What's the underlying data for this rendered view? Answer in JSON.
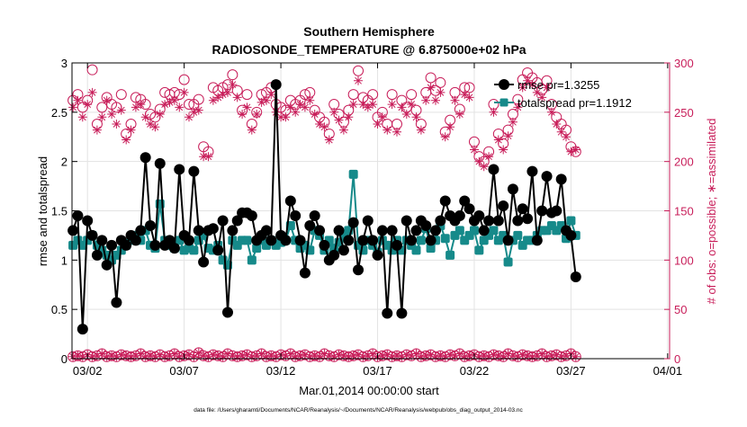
{
  "colors": {
    "rmse": "#000000",
    "spread": "#168a8a",
    "obs": "#c81e5a",
    "axis": "#000000",
    "grid": "#e3e3e3"
  },
  "chart_data": {
    "type": "line",
    "title": "Southern Hemisphere",
    "subtitle": "RADIOSONDE_TEMPERATURE @ 6.875000e+02 hPa",
    "xlabel": "Mar.01,2014 00:00:00 start",
    "ylabel_left": "rmse and totalspread",
    "ylabel_right": "# of obs: o=possible; ∗=assimilated",
    "footer": "data file: /Users/gharamti/Documents/NCAR/Reanalysis/~/Documents/NCAR/Reanalysis/webpub/obs_diag_output_2014-03.nc",
    "xlim": [
      1.2,
      32.1
    ],
    "ylim_left": [
      0,
      3
    ],
    "ylim_right": [
      0,
      300
    ],
    "x_ticks": [
      {
        "value": 2,
        "label": "03/02"
      },
      {
        "value": 7,
        "label": "03/07"
      },
      {
        "value": 12,
        "label": "03/12"
      },
      {
        "value": 17,
        "label": "03/17"
      },
      {
        "value": 22,
        "label": "03/22"
      },
      {
        "value": 27,
        "label": "03/27"
      },
      {
        "value": 32,
        "label": "04/01"
      }
    ],
    "y_ticks_left": [
      {
        "value": 0,
        "label": "0"
      },
      {
        "value": 0.5,
        "label": "0.5"
      },
      {
        "value": 1,
        "label": "1"
      },
      {
        "value": 1.5,
        "label": "1.5"
      },
      {
        "value": 2,
        "label": "2"
      },
      {
        "value": 2.5,
        "label": "2.5"
      },
      {
        "value": 3,
        "label": "3"
      }
    ],
    "y_ticks_right": [
      {
        "value": 0,
        "label": "0"
      },
      {
        "value": 50,
        "label": "50"
      },
      {
        "value": 100,
        "label": "100"
      },
      {
        "value": 150,
        "label": "150"
      },
      {
        "value": 200,
        "label": "200"
      },
      {
        "value": 250,
        "label": "250"
      },
      {
        "value": 300,
        "label": "300"
      }
    ],
    "legend": {
      "location": "top-right",
      "entries": [
        {
          "series": "rmse",
          "label": "rmse pr=1.3255"
        },
        {
          "series": "spread",
          "label": "totalspread pr=1.1912"
        }
      ]
    },
    "x_start": 1.25,
    "x_step": 0.25,
    "series": [
      {
        "name": "rmse",
        "axis": "left",
        "values": [
          1.3,
          1.45,
          0.3,
          1.4,
          1.25,
          1.05,
          1.2,
          0.95,
          1.15,
          0.57,
          1.2,
          1.15,
          1.25,
          1.2,
          1.3,
          2.04,
          1.35,
          1.15,
          1.98,
          1.15,
          1.2,
          1.12,
          1.92,
          1.25,
          1.2,
          1.9,
          1.3,
          0.98,
          1.3,
          1.32,
          1.1,
          1.4,
          0.47,
          1.3,
          1.4,
          1.48,
          1.48,
          1.45,
          1.2,
          1.25,
          1.3,
          1.2,
          2.78,
          1.25,
          1.2,
          1.6,
          1.45,
          1.2,
          0.87,
          1.35,
          1.45,
          1.3,
          1.15,
          1.0,
          1.05,
          1.3,
          1.1,
          1.2,
          1.38,
          0.9,
          1.2,
          1.4,
          1.2,
          1.05,
          1.3,
          0.46,
          1.3,
          1.15,
          0.46,
          1.4,
          1.2,
          1.3,
          1.4,
          1.35,
          1.2,
          1.3,
          1.4,
          1.6,
          1.45,
          1.4,
          1.45,
          1.6,
          1.52,
          1.4,
          1.45,
          1.3,
          1.4,
          1.92,
          1.4,
          1.55,
          1.2,
          1.72,
          1.4,
          1.52,
          1.42,
          1.9,
          1.2,
          1.5,
          1.85,
          1.48,
          1.5,
          1.82,
          1.3,
          1.25,
          0.83
        ]
      },
      {
        "name": "totalspread",
        "axis": "left",
        "values": [
          1.15,
          1.2,
          1.15,
          1.2,
          1.25,
          1.15,
          1.1,
          1.05,
          1.0,
          1.05,
          1.1,
          1.15,
          1.2,
          1.25,
          1.2,
          1.3,
          1.15,
          1.12,
          1.57,
          1.2,
          1.15,
          1.12,
          1.2,
          1.1,
          1.12,
          1.1,
          1.2,
          1.25,
          1.12,
          1.1,
          1.15,
          1.0,
          0.95,
          1.2,
          1.15,
          1.2,
          1.2,
          1.0,
          1.12,
          1.2,
          1.15,
          1.2,
          1.15,
          1.18,
          1.2,
          1.35,
          1.2,
          1.12,
          1.15,
          1.1,
          1.3,
          1.25,
          1.1,
          1.2,
          1.12,
          1.18,
          1.25,
          1.3,
          1.87,
          1.15,
          1.1,
          1.2,
          1.15,
          1.08,
          1.2,
          1.15,
          1.1,
          1.2,
          1.1,
          1.2,
          1.15,
          1.1,
          1.2,
          1.32,
          1.12,
          1.2,
          1.35,
          1.22,
          1.05,
          1.25,
          1.3,
          1.2,
          1.25,
          1.3,
          1.1,
          1.2,
          1.25,
          1.3,
          1.2,
          1.25,
          0.98,
          1.2,
          1.25,
          1.15,
          1.2,
          1.2,
          1.25,
          1.3,
          1.3,
          1.35,
          1.3,
          1.35,
          1.22,
          1.4,
          1.25
        ]
      },
      {
        "name": "obs possible",
        "axis": "right",
        "marker": "circle",
        "values": [
          262,
          268,
          255,
          262,
          293,
          238,
          255,
          265,
          258,
          255,
          268,
          228,
          238,
          265,
          263,
          258,
          248,
          245,
          253,
          270,
          268,
          270,
          268,
          283,
          258,
          258,
          263,
          215,
          210,
          275,
          272,
          275,
          278,
          288,
          272,
          252,
          268,
          238,
          250,
          268,
          270,
          275,
          258,
          255,
          252,
          262,
          258,
          262,
          268,
          270,
          252,
          245,
          240,
          228,
          258,
          248,
          240,
          252,
          268,
          292,
          265,
          262,
          268,
          245,
          250,
          238,
          268,
          238,
          262,
          255,
          268,
          252,
          238,
          270,
          285,
          272,
          280,
          230,
          242,
          270,
          253,
          275,
          275,
          220,
          205,
          200,
          210,
          258,
          228,
          218,
          232,
          248,
          263,
          283,
          290,
          285,
          280,
          273,
          282,
          258,
          245,
          238,
          232,
          215,
          210
        ]
      },
      {
        "name": "obs assimilated",
        "axis": "right",
        "marker": "star",
        "values": [
          255,
          262,
          245,
          258,
          270,
          232,
          245,
          262,
          248,
          238,
          252,
          222,
          232,
          255,
          258,
          245,
          238,
          235,
          248,
          258,
          260,
          262,
          255,
          270,
          245,
          250,
          252,
          205,
          205,
          262,
          265,
          268,
          270,
          278,
          265,
          248,
          255,
          232,
          248,
          260,
          262,
          268,
          250,
          245,
          245,
          255,
          250,
          258,
          255,
          262,
          248,
          238,
          235,
          222,
          250,
          242,
          232,
          245,
          258,
          282,
          258,
          255,
          258,
          238,
          245,
          232,
          258,
          230,
          255,
          248,
          258,
          245,
          232,
          262,
          275,
          262,
          270,
          225,
          235,
          262,
          248,
          268,
          265,
          212,
          200,
          195,
          205,
          250,
          222,
          212,
          226,
          240,
          255,
          275,
          282,
          278,
          270,
          265,
          275,
          250,
          238,
          230,
          225,
          210,
          212
        ]
      },
      {
        "name": "obs bottom possible",
        "axis": "right",
        "marker": "circle",
        "values": [
          2,
          3,
          2,
          4,
          2,
          3,
          5,
          2,
          3,
          2,
          4,
          3,
          2,
          3,
          5,
          2,
          3,
          2,
          4,
          2,
          3,
          5,
          2,
          3,
          4,
          2,
          6,
          3,
          2,
          4,
          3,
          2,
          5,
          3,
          2,
          3,
          4,
          2,
          3,
          5,
          2,
          3,
          2,
          4,
          3,
          5,
          2,
          3,
          4,
          2,
          3,
          2,
          5,
          3,
          2,
          4,
          3,
          2,
          3,
          4,
          2,
          3,
          5,
          2,
          3,
          4,
          2,
          3,
          2,
          4,
          3,
          5,
          2,
          3,
          4,
          2,
          3,
          2,
          4,
          3,
          5,
          2,
          3,
          4,
          2,
          3,
          2,
          4,
          3,
          2,
          5,
          3,
          2,
          4,
          3,
          2,
          3,
          5,
          2,
          3,
          4,
          2,
          3,
          5,
          2
        ]
      },
      {
        "name": "obs bottom assimilated",
        "axis": "right",
        "marker": "star",
        "values": [
          2,
          3,
          2,
          4,
          2,
          3,
          5,
          2,
          3,
          2,
          4,
          3,
          2,
          3,
          5,
          2,
          3,
          2,
          4,
          2,
          3,
          5,
          2,
          3,
          4,
          2,
          6,
          3,
          2,
          4,
          3,
          2,
          5,
          3,
          2,
          3,
          4,
          2,
          3,
          5,
          2,
          3,
          2,
          4,
          3,
          5,
          2,
          3,
          4,
          2,
          3,
          2,
          5,
          3,
          2,
          4,
          3,
          2,
          3,
          4,
          2,
          3,
          5,
          2,
          3,
          4,
          2,
          3,
          2,
          4,
          3,
          5,
          2,
          3,
          4,
          2,
          3,
          2,
          4,
          3,
          5,
          2,
          3,
          4,
          2,
          3,
          2,
          4,
          3,
          2,
          5,
          3,
          2,
          4,
          3,
          2,
          3,
          5,
          2,
          3,
          4,
          2,
          3,
          5,
          2
        ]
      }
    ]
  }
}
